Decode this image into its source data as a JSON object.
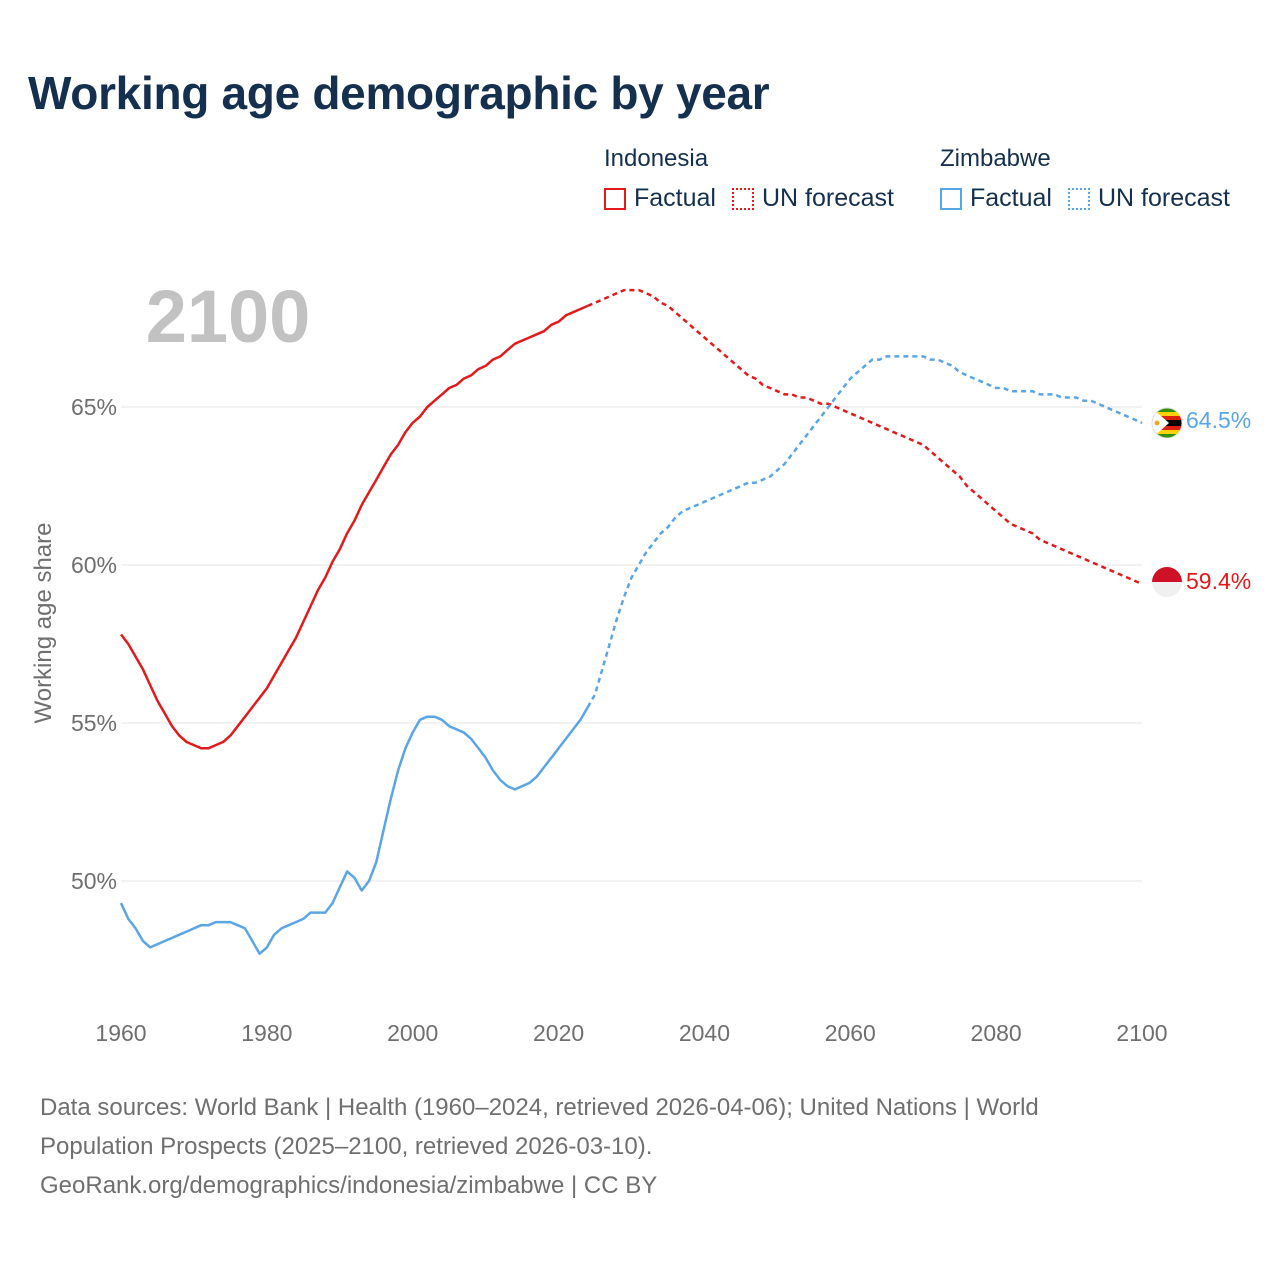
{
  "title": "Working age demographic by year",
  "legend": {
    "groups": [
      {
        "country": "Indonesia",
        "factual_label": "Factual",
        "forecast_label": "UN forecast",
        "color": "#e31a1c"
      },
      {
        "country": "Zimbabwe",
        "factual_label": "Factual",
        "forecast_label": "UN forecast",
        "color": "#5aa5e6"
      }
    ]
  },
  "footer": {
    "line1": "Data sources: World Bank | Health (1960–2024, retrieved 2026-04-06); United Nations | World",
    "line2": "Population Prospects (2025–2100, retrieved 2026-03-10).",
    "line3": "GeoRank.org/demographics/indonesia/zimbabwe | CC BY"
  },
  "chart_data": {
    "type": "line",
    "title": "Working age demographic by year",
    "year_label": "2100",
    "xlabel": "",
    "ylabel": "Working age share",
    "xlim": [
      1960,
      2100
    ],
    "ylim": [
      46.5,
      69
    ],
    "x_ticks": [
      1960,
      1980,
      2000,
      2020,
      2040,
      2060,
      2080,
      2100
    ],
    "x_tick_labels": [
      "1960",
      "1980",
      "2000",
      "2020",
      "2040",
      "2060",
      "2080",
      "2100"
    ],
    "y_ticks": [
      50,
      55,
      60,
      65
    ],
    "y_tick_labels": [
      "50%",
      "55%",
      "60%",
      "65%"
    ],
    "grid": true,
    "forecast_start": 2024,
    "series": [
      {
        "name": "Indonesia",
        "color": "#e31a1c",
        "end_label": "59.4%",
        "flag": "indonesia-flag",
        "points": [
          [
            1960,
            57.8
          ],
          [
            1961,
            57.5
          ],
          [
            1962,
            57.1
          ],
          [
            1963,
            56.7
          ],
          [
            1964,
            56.2
          ],
          [
            1965,
            55.7
          ],
          [
            1966,
            55.3
          ],
          [
            1967,
            54.9
          ],
          [
            1968,
            54.6
          ],
          [
            1969,
            54.4
          ],
          [
            1970,
            54.3
          ],
          [
            1971,
            54.2
          ],
          [
            1972,
            54.2
          ],
          [
            1973,
            54.3
          ],
          [
            1974,
            54.4
          ],
          [
            1975,
            54.6
          ],
          [
            1976,
            54.9
          ],
          [
            1977,
            55.2
          ],
          [
            1978,
            55.5
          ],
          [
            1979,
            55.8
          ],
          [
            1980,
            56.1
          ],
          [
            1981,
            56.5
          ],
          [
            1982,
            56.9
          ],
          [
            1983,
            57.3
          ],
          [
            1984,
            57.7
          ],
          [
            1985,
            58.2
          ],
          [
            1986,
            58.7
          ],
          [
            1987,
            59.2
          ],
          [
            1988,
            59.6
          ],
          [
            1989,
            60.1
          ],
          [
            1990,
            60.5
          ],
          [
            1991,
            61.0
          ],
          [
            1992,
            61.4
          ],
          [
            1993,
            61.9
          ],
          [
            1994,
            62.3
          ],
          [
            1995,
            62.7
          ],
          [
            1996,
            63.1
          ],
          [
            1997,
            63.5
          ],
          [
            1998,
            63.8
          ],
          [
            1999,
            64.2
          ],
          [
            2000,
            64.5
          ],
          [
            2001,
            64.7
          ],
          [
            2002,
            65.0
          ],
          [
            2003,
            65.2
          ],
          [
            2004,
            65.4
          ],
          [
            2005,
            65.6
          ],
          [
            2006,
            65.7
          ],
          [
            2007,
            65.9
          ],
          [
            2008,
            66.0
          ],
          [
            2009,
            66.2
          ],
          [
            2010,
            66.3
          ],
          [
            2011,
            66.5
          ],
          [
            2012,
            66.6
          ],
          [
            2013,
            66.8
          ],
          [
            2014,
            67.0
          ],
          [
            2015,
            67.1
          ],
          [
            2016,
            67.2
          ],
          [
            2017,
            67.3
          ],
          [
            2018,
            67.4
          ],
          [
            2019,
            67.6
          ],
          [
            2020,
            67.7
          ],
          [
            2021,
            67.9
          ],
          [
            2022,
            68.0
          ],
          [
            2023,
            68.1
          ],
          [
            2024,
            68.2
          ],
          [
            2025,
            68.3
          ],
          [
            2026,
            68.4
          ],
          [
            2027,
            68.5
          ],
          [
            2028,
            68.6
          ],
          [
            2029,
            68.7
          ],
          [
            2030,
            68.7
          ],
          [
            2031,
            68.7
          ],
          [
            2032,
            68.6
          ],
          [
            2033,
            68.5
          ],
          [
            2034,
            68.3
          ],
          [
            2035,
            68.2
          ],
          [
            2036,
            68.0
          ],
          [
            2037,
            67.8
          ],
          [
            2038,
            67.6
          ],
          [
            2039,
            67.4
          ],
          [
            2040,
            67.2
          ],
          [
            2041,
            67.0
          ],
          [
            2042,
            66.8
          ],
          [
            2043,
            66.6
          ],
          [
            2044,
            66.4
          ],
          [
            2045,
            66.2
          ],
          [
            2046,
            66.0
          ],
          [
            2047,
            65.9
          ],
          [
            2048,
            65.7
          ],
          [
            2049,
            65.6
          ],
          [
            2050,
            65.5
          ],
          [
            2051,
            65.4
          ],
          [
            2052,
            65.4
          ],
          [
            2053,
            65.3
          ],
          [
            2054,
            65.3
          ],
          [
            2055,
            65.2
          ],
          [
            2056,
            65.1
          ],
          [
            2057,
            65.1
          ],
          [
            2058,
            65.0
          ],
          [
            2059,
            64.9
          ],
          [
            2060,
            64.8
          ],
          [
            2061,
            64.7
          ],
          [
            2062,
            64.6
          ],
          [
            2063,
            64.5
          ],
          [
            2064,
            64.4
          ],
          [
            2065,
            64.3
          ],
          [
            2066,
            64.2
          ],
          [
            2067,
            64.1
          ],
          [
            2068,
            64.0
          ],
          [
            2069,
            63.9
          ],
          [
            2070,
            63.8
          ],
          [
            2071,
            63.6
          ],
          [
            2072,
            63.4
          ],
          [
            2073,
            63.2
          ],
          [
            2074,
            63.0
          ],
          [
            2075,
            62.8
          ],
          [
            2076,
            62.5
          ],
          [
            2077,
            62.3
          ],
          [
            2078,
            62.1
          ],
          [
            2079,
            61.9
          ],
          [
            2080,
            61.7
          ],
          [
            2081,
            61.5
          ],
          [
            2082,
            61.3
          ],
          [
            2083,
            61.2
          ],
          [
            2084,
            61.1
          ],
          [
            2085,
            61.0
          ],
          [
            2086,
            60.8
          ],
          [
            2087,
            60.7
          ],
          [
            2088,
            60.6
          ],
          [
            2089,
            60.5
          ],
          [
            2090,
            60.4
          ],
          [
            2091,
            60.3
          ],
          [
            2092,
            60.2
          ],
          [
            2093,
            60.1
          ],
          [
            2094,
            60.0
          ],
          [
            2095,
            59.9
          ],
          [
            2096,
            59.8
          ],
          [
            2097,
            59.7
          ],
          [
            2098,
            59.6
          ],
          [
            2099,
            59.5
          ],
          [
            2100,
            59.4
          ]
        ]
      },
      {
        "name": "Zimbabwe",
        "color": "#5aa5e6",
        "end_label": "64.5%",
        "flag": "zimbabwe-flag",
        "points": [
          [
            1960,
            49.3
          ],
          [
            1961,
            48.8
          ],
          [
            1962,
            48.5
          ],
          [
            1963,
            48.1
          ],
          [
            1964,
            47.9
          ],
          [
            1965,
            48.0
          ],
          [
            1966,
            48.1
          ],
          [
            1967,
            48.2
          ],
          [
            1968,
            48.3
          ],
          [
            1969,
            48.4
          ],
          [
            1970,
            48.5
          ],
          [
            1971,
            48.6
          ],
          [
            1972,
            48.6
          ],
          [
            1973,
            48.7
          ],
          [
            1974,
            48.7
          ],
          [
            1975,
            48.7
          ],
          [
            1976,
            48.6
          ],
          [
            1977,
            48.5
          ],
          [
            1978,
            48.1
          ],
          [
            1979,
            47.7
          ],
          [
            1980,
            47.9
          ],
          [
            1981,
            48.3
          ],
          [
            1982,
            48.5
          ],
          [
            1983,
            48.6
          ],
          [
            1984,
            48.7
          ],
          [
            1985,
            48.8
          ],
          [
            1986,
            49.0
          ],
          [
            1987,
            49.0
          ],
          [
            1988,
            49.0
          ],
          [
            1989,
            49.3
          ],
          [
            1990,
            49.8
          ],
          [
            1991,
            50.3
          ],
          [
            1992,
            50.1
          ],
          [
            1993,
            49.7
          ],
          [
            1994,
            50.0
          ],
          [
            1995,
            50.6
          ],
          [
            1996,
            51.6
          ],
          [
            1997,
            52.6
          ],
          [
            1998,
            53.5
          ],
          [
            1999,
            54.2
          ],
          [
            2000,
            54.7
          ],
          [
            2001,
            55.1
          ],
          [
            2002,
            55.2
          ],
          [
            2003,
            55.2
          ],
          [
            2004,
            55.1
          ],
          [
            2005,
            54.9
          ],
          [
            2006,
            54.8
          ],
          [
            2007,
            54.7
          ],
          [
            2008,
            54.5
          ],
          [
            2009,
            54.2
          ],
          [
            2010,
            53.9
          ],
          [
            2011,
            53.5
          ],
          [
            2012,
            53.2
          ],
          [
            2013,
            53.0
          ],
          [
            2014,
            52.9
          ],
          [
            2015,
            53.0
          ],
          [
            2016,
            53.1
          ],
          [
            2017,
            53.3
          ],
          [
            2018,
            53.6
          ],
          [
            2019,
            53.9
          ],
          [
            2020,
            54.2
          ],
          [
            2021,
            54.5
          ],
          [
            2022,
            54.8
          ],
          [
            2023,
            55.1
          ],
          [
            2024,
            55.5
          ],
          [
            2025,
            55.9
          ],
          [
            2026,
            56.7
          ],
          [
            2027,
            57.5
          ],
          [
            2028,
            58.3
          ],
          [
            2029,
            59.0
          ],
          [
            2030,
            59.6
          ],
          [
            2031,
            60.0
          ],
          [
            2032,
            60.4
          ],
          [
            2033,
            60.7
          ],
          [
            2034,
            61.0
          ],
          [
            2035,
            61.2
          ],
          [
            2036,
            61.5
          ],
          [
            2037,
            61.7
          ],
          [
            2038,
            61.8
          ],
          [
            2039,
            61.9
          ],
          [
            2040,
            62.0
          ],
          [
            2041,
            62.1
          ],
          [
            2042,
            62.2
          ],
          [
            2043,
            62.3
          ],
          [
            2044,
            62.4
          ],
          [
            2045,
            62.5
          ],
          [
            2046,
            62.6
          ],
          [
            2047,
            62.6
          ],
          [
            2048,
            62.7
          ],
          [
            2049,
            62.8
          ],
          [
            2050,
            63.0
          ],
          [
            2051,
            63.2
          ],
          [
            2052,
            63.5
          ],
          [
            2053,
            63.8
          ],
          [
            2054,
            64.1
          ],
          [
            2055,
            64.4
          ],
          [
            2056,
            64.7
          ],
          [
            2057,
            65.0
          ],
          [
            2058,
            65.3
          ],
          [
            2059,
            65.6
          ],
          [
            2060,
            65.9
          ],
          [
            2061,
            66.1
          ],
          [
            2062,
            66.3
          ],
          [
            2063,
            66.5
          ],
          [
            2064,
            66.5
          ],
          [
            2065,
            66.6
          ],
          [
            2066,
            66.6
          ],
          [
            2067,
            66.6
          ],
          [
            2068,
            66.6
          ],
          [
            2069,
            66.6
          ],
          [
            2070,
            66.6
          ],
          [
            2071,
            66.5
          ],
          [
            2072,
            66.5
          ],
          [
            2073,
            66.4
          ],
          [
            2074,
            66.3
          ],
          [
            2075,
            66.1
          ],
          [
            2076,
            66.0
          ],
          [
            2077,
            65.9
          ],
          [
            2078,
            65.8
          ],
          [
            2079,
            65.7
          ],
          [
            2080,
            65.6
          ],
          [
            2081,
            65.6
          ],
          [
            2082,
            65.5
          ],
          [
            2083,
            65.5
          ],
          [
            2084,
            65.5
          ],
          [
            2085,
            65.5
          ],
          [
            2086,
            65.4
          ],
          [
            2087,
            65.4
          ],
          [
            2088,
            65.4
          ],
          [
            2089,
            65.3
          ],
          [
            2090,
            65.3
          ],
          [
            2091,
            65.3
          ],
          [
            2092,
            65.2
          ],
          [
            2093,
            65.2
          ],
          [
            2094,
            65.1
          ],
          [
            2095,
            65.0
          ],
          [
            2096,
            64.9
          ],
          [
            2097,
            64.8
          ],
          [
            2098,
            64.7
          ],
          [
            2099,
            64.6
          ],
          [
            2100,
            64.5
          ]
        ]
      }
    ]
  }
}
